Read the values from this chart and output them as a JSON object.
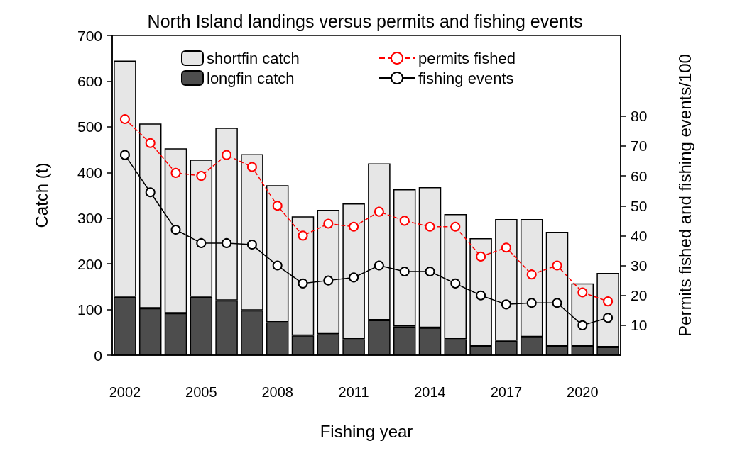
{
  "chart_data": {
    "type": "bar",
    "title": "North Island landings versus permits and fishing events",
    "xlabel": "Fishing year",
    "ylabel": "Catch (t)",
    "y2label": "Permits fished and fishing events/100",
    "categories": [
      "2002",
      null,
      null,
      "2005",
      null,
      null,
      "2008",
      null,
      null,
      "2011",
      null,
      null,
      "2014",
      null,
      null,
      "2017",
      null,
      null,
      "2020",
      null
    ],
    "stacked": true,
    "series": [
      {
        "name": "longfin catch",
        "color": "#4d4d4d",
        "values": [
          128,
          103,
          92,
          128,
          120,
          98,
          72,
          43,
          46,
          35,
          77,
          63,
          60,
          35,
          20,
          32,
          40,
          20,
          20,
          18
        ]
      },
      {
        "name": "shortfin catch",
        "color": "#e6e6e6",
        "values": [
          517,
          404,
          361,
          300,
          378,
          342,
          300,
          261,
          272,
          297,
          343,
          300,
          308,
          274,
          236,
          266,
          258,
          250,
          137,
          162
        ]
      },
      {
        "name": "permits fished",
        "type": "line",
        "axis": "y2",
        "color": "#ff0000",
        "line_style": "dashed",
        "marker": "circle",
        "values": [
          79,
          71,
          61,
          60,
          67,
          63,
          50,
          40,
          44,
          43,
          48,
          45,
          43,
          43,
          33,
          36,
          27,
          30,
          21,
          18
        ]
      },
      {
        "name": "fishing events",
        "type": "line",
        "axis": "y2",
        "color": "#000000",
        "line_style": "solid",
        "marker": "circle",
        "values": [
          67,
          54.5,
          42,
          37.5,
          37.5,
          37,
          30,
          24,
          25,
          26,
          30,
          28,
          28,
          24,
          20,
          17,
          17.5,
          17.5,
          10,
          12.5
        ]
      }
    ],
    "ylim": [
      0,
      700
    ],
    "yticks": [
      0,
      100,
      200,
      300,
      400,
      500,
      600,
      700
    ],
    "y2lim": [
      0,
      107
    ],
    "y2ticks": [
      10,
      20,
      30,
      40,
      50,
      60,
      70,
      80
    ],
    "legend": "top",
    "grid": false
  }
}
